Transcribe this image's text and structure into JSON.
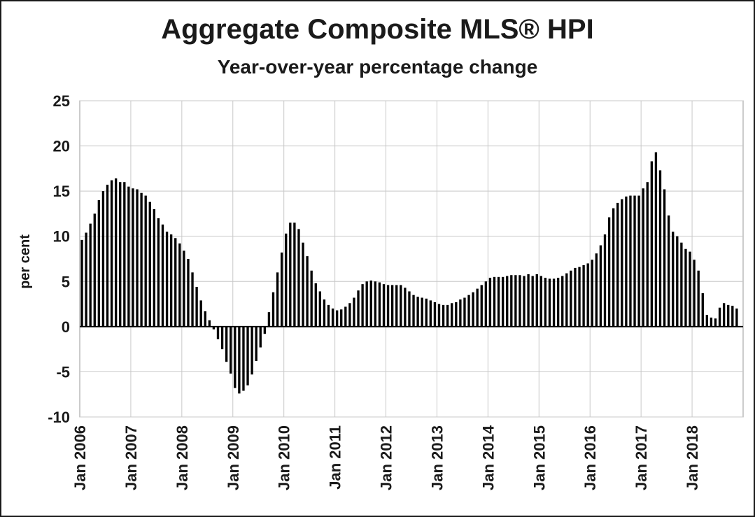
{
  "chart_data": {
    "type": "bar",
    "title": "Aggregate Composite MLS® HPI",
    "subtitle": "Year-over-year percentage change",
    "ylabel": "per cent",
    "xlabel": "",
    "ylim": [
      -10,
      25
    ],
    "yticks": [
      25,
      20,
      15,
      10,
      5,
      0,
      -5,
      -10
    ],
    "ytick_labels": [
      "25",
      "20",
      "15",
      "10",
      "5",
      "0",
      "-5",
      "-10"
    ],
    "x_start": "Jan 2006",
    "frequency": "monthly",
    "xtick_labels": [
      "Jan 2006",
      "Jan 2007",
      "Jan 2008",
      "Jan 2009",
      "Jan 2010",
      "Jan 2011",
      "Jan 2012",
      "Jan 2013",
      "Jan 2014",
      "Jan 2015",
      "Jan 2016",
      "Jan 2017",
      "Jan 2018"
    ],
    "grid": true,
    "bar_color": "#000000",
    "values": [
      9.6,
      10.4,
      11.4,
      12.5,
      14.0,
      15.0,
      15.7,
      16.2,
      16.4,
      16.0,
      16.0,
      15.5,
      15.3,
      15.2,
      14.8,
      14.5,
      13.8,
      13.0,
      12.0,
      11.3,
      10.5,
      10.2,
      9.8,
      9.2,
      8.4,
      7.5,
      6.0,
      4.4,
      2.9,
      1.7,
      0.7,
      -0.3,
      -1.4,
      -2.5,
      -3.9,
      -5.2,
      -6.8,
      -7.4,
      -7.1,
      -6.5,
      -5.3,
      -3.8,
      -2.3,
      -0.8,
      1.6,
      3.8,
      6.0,
      8.2,
      10.3,
      11.5,
      11.5,
      10.8,
      9.3,
      7.8,
      6.2,
      4.8,
      3.9,
      3.0,
      2.4,
      2.0,
      1.8,
      1.9,
      2.2,
      2.6,
      3.2,
      4.0,
      4.7,
      5.0,
      5.1,
      5.0,
      4.9,
      4.7,
      4.6,
      4.6,
      4.6,
      4.6,
      4.3,
      3.9,
      3.5,
      3.3,
      3.2,
      3.1,
      2.9,
      2.7,
      2.5,
      2.4,
      2.4,
      2.6,
      2.7,
      3.0,
      3.2,
      3.5,
      3.8,
      4.2,
      4.6,
      5.0,
      5.4,
      5.5,
      5.5,
      5.5,
      5.6,
      5.7,
      5.7,
      5.7,
      5.6,
      5.8,
      5.6,
      5.8,
      5.6,
      5.4,
      5.3,
      5.3,
      5.4,
      5.6,
      5.9,
      6.2,
      6.5,
      6.6,
      6.8,
      7.0,
      7.4,
      8.1,
      9.0,
      10.2,
      12.1,
      13.1,
      13.7,
      14.1,
      14.4,
      14.5,
      14.5,
      14.5,
      15.3,
      16.0,
      18.3,
      19.3,
      17.3,
      15.2,
      12.3,
      10.5,
      10.0,
      9.3,
      8.6,
      8.3,
      7.4,
      6.2,
      3.7,
      1.3,
      1.0,
      0.9,
      2.1,
      2.6,
      2.4,
      2.3,
      2.0
    ]
  }
}
